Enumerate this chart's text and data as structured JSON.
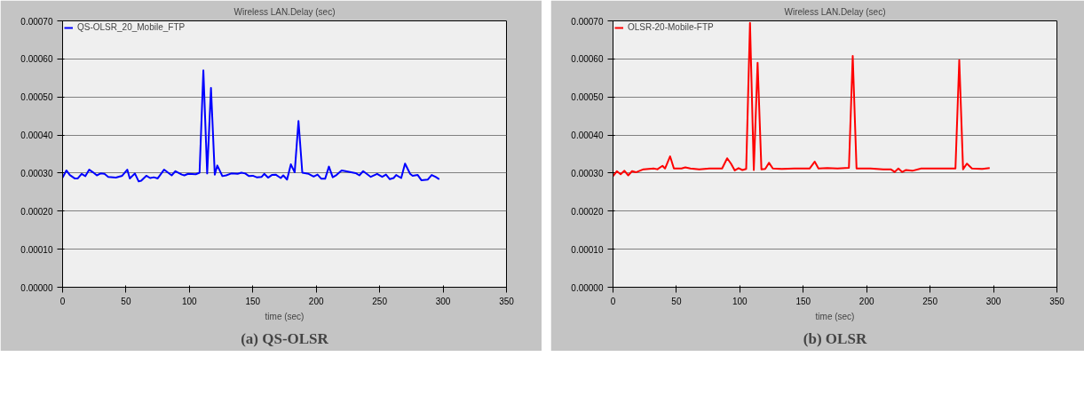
{
  "chart_data": [
    {
      "type": "line",
      "title": "Wireless LAN.Delay (sec)",
      "xlabel": "time (sec)",
      "annotations": [
        "(a) QS-OLSR"
      ],
      "xlim": [
        0,
        350
      ],
      "xticks": [
        0,
        50,
        100,
        150,
        200,
        250,
        300,
        350
      ],
      "ylim": [
        0,
        0.0007
      ],
      "yticks": [
        {
          "value": 0,
          "label": "0.00000"
        },
        {
          "value": 0.0001,
          "label": "0.00010"
        },
        {
          "value": 0.0002,
          "label": "0.00020"
        },
        {
          "value": 0.0003,
          "label": "0.00030"
        },
        {
          "value": 0.0004,
          "label": "0.00040"
        },
        {
          "value": 0.0005,
          "label": "0.00050"
        },
        {
          "value": 0.0006,
          "label": "0.00060"
        },
        {
          "value": 0.0007,
          "label": "0.00070"
        }
      ],
      "grid": "y",
      "legend": "top left",
      "marker": "none",
      "line_style": "solid",
      "series": [
        {
          "name": "QS-OLSR_20_Mobile_FTP",
          "color": "#0000ff",
          "x": [
            0,
            3,
            5.7,
            9.5,
            12,
            15,
            18,
            21,
            24,
            27,
            30,
            33,
            36,
            42,
            47,
            51,
            53,
            57,
            60,
            62,
            66,
            69,
            72,
            75,
            80,
            86,
            89,
            94,
            96,
            99,
            105,
            108,
            111,
            114,
            117,
            120,
            122,
            126,
            129,
            133,
            138,
            141,
            144,
            147,
            150,
            153,
            157,
            159,
            162,
            165,
            168,
            172,
            174,
            177,
            180,
            183,
            186,
            189,
            194,
            198,
            201,
            204,
            207,
            210,
            213,
            216,
            220,
            223,
            231,
            234,
            237,
            243,
            248,
            252,
            255,
            258,
            261,
            263,
            267,
            270,
            274,
            276,
            280,
            283,
            288,
            291,
            294,
            297
          ],
          "values": [
            0.000288,
            0.000307,
            0.000295,
            0.000286,
            0.000286,
            0.000298,
            0.000292,
            0.000309,
            0.000302,
            0.000294,
            0.000299,
            0.000298,
            0.00029,
            0.000288,
            0.000293,
            0.000309,
            0.000286,
            0.000299,
            0.000278,
            0.00028,
            0.000293,
            0.000287,
            0.000289,
            0.000286,
            0.000309,
            0.000294,
            0.000305,
            0.000296,
            0.000294,
            0.000298,
            0.000297,
            0.000301,
            0.00057,
            0.000299,
            0.000524,
            0.000296,
            0.00032,
            0.000292,
            0.000294,
            0.000299,
            0.000298,
            0.000301,
            0.000299,
            0.000292,
            0.000293,
            0.000289,
            0.00029,
            0.000298,
            0.000288,
            0.000295,
            0.000296,
            0.000287,
            0.000294,
            0.000283,
            0.000323,
            0.000302,
            0.000437,
            0.000301,
            0.000298,
            0.000291,
            0.000296,
            0.000285,
            0.000285,
            0.000317,
            0.000289,
            0.000295,
            0.000307,
            0.000305,
            0.0003,
            0.000294,
            0.000305,
            0.00029,
            0.000298,
            0.00029,
            0.000296,
            0.000284,
            0.000287,
            0.000295,
            0.000287,
            0.000325,
            0.000298,
            0.000293,
            0.000295,
            0.000281,
            0.000283,
            0.000295,
            0.00029,
            0.000284
          ]
        }
      ]
    },
    {
      "type": "line",
      "title": "Wireless LAN.Delay (sec)",
      "xlabel": "time (sec)",
      "annotations": [
        "(b) OLSR"
      ],
      "xlim": [
        0,
        350
      ],
      "xticks": [
        0,
        50,
        100,
        150,
        200,
        250,
        300,
        350
      ],
      "ylim": [
        0,
        0.0007
      ],
      "yticks": [
        {
          "value": 0,
          "label": "0.00000"
        },
        {
          "value": 0.0001,
          "label": "0.00010"
        },
        {
          "value": 0.0002,
          "label": "0.00020"
        },
        {
          "value": 0.0003,
          "label": "0.00030"
        },
        {
          "value": 0.0004,
          "label": "0.00040"
        },
        {
          "value": 0.0005,
          "label": "0.00050"
        },
        {
          "value": 0.0006,
          "label": "0.00060"
        },
        {
          "value": 0.0007,
          "label": "0.00070"
        }
      ],
      "grid": "y",
      "legend": "top left",
      "marker": "none",
      "line_style": "solid",
      "series": [
        {
          "name": "OLSR-20-Mobile-FTP",
          "color": "#ff0000",
          "x": [
            0,
            3,
            6,
            9,
            12,
            15,
            18,
            24,
            32,
            35,
            39,
            41,
            45,
            48,
            54,
            57,
            61,
            68,
            76,
            86,
            90,
            93,
            96,
            99,
            102,
            105,
            108,
            111,
            114,
            117,
            120,
            123,
            126,
            133,
            143,
            155,
            159,
            162,
            169,
            177,
            186,
            189,
            192,
            203,
            213,
            219,
            222,
            225,
            228,
            231,
            236,
            243,
            254,
            262,
            270,
            273,
            276,
            279,
            283,
            291,
            297
          ],
          "values": [
            0.000292,
            0.000305,
            0.000297,
            0.000306,
            0.000294,
            0.000305,
            0.000302,
            0.00031,
            0.000312,
            0.00031,
            0.000319,
            0.000312,
            0.000344,
            0.000312,
            0.000312,
            0.000315,
            0.000312,
            0.00031,
            0.000312,
            0.000312,
            0.000339,
            0.000325,
            0.000307,
            0.000313,
            0.000308,
            0.000311,
            0.000695,
            0.000308,
            0.00059,
            0.00031,
            0.000311,
            0.000327,
            0.000312,
            0.000311,
            0.000312,
            0.000312,
            0.00033,
            0.000312,
            0.000313,
            0.000312,
            0.000314,
            0.000608,
            0.000312,
            0.000312,
            0.00031,
            0.00031,
            0.000303,
            0.000312,
            0.000303,
            0.000308,
            0.000306,
            0.000312,
            0.000312,
            0.000312,
            0.000312,
            0.000597,
            0.00031,
            0.000325,
            0.000312,
            0.000311,
            0.000313
          ]
        }
      ]
    }
  ]
}
